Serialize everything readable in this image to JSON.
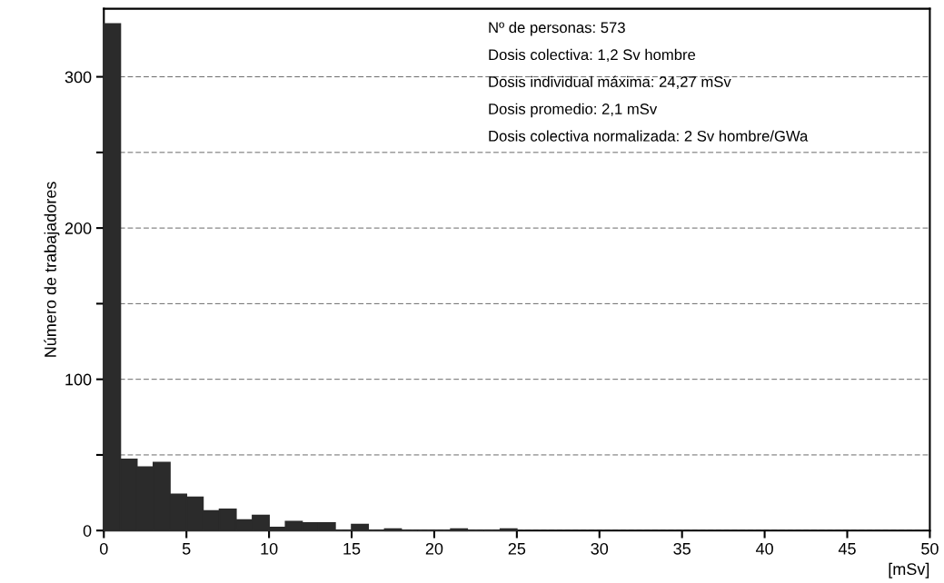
{
  "chart_data": {
    "type": "histogram",
    "xlabel": "[mSv]",
    "ylabel": "Número de trabajadores",
    "bins": [
      0,
      1,
      2,
      3,
      4,
      5,
      6,
      7,
      8,
      9,
      10,
      11,
      12,
      13,
      14,
      15,
      16,
      17,
      18,
      19,
      20,
      21,
      22,
      23,
      24,
      25
    ],
    "values": [
      335,
      47,
      42,
      45,
      24,
      22,
      13,
      14,
      7,
      10,
      2,
      6,
      5,
      5,
      0,
      4,
      0,
      1,
      0,
      0,
      0,
      1,
      0,
      0,
      1
    ],
    "color": "#2b2b2b",
    "xlim": [
      0,
      50
    ],
    "xticks": [
      0,
      5,
      10,
      15,
      20,
      25,
      30,
      35,
      40,
      45,
      50
    ],
    "ylim": [
      0,
      345
    ],
    "yticks": [
      0,
      {
        "value": 50,
        "label": null
      },
      100,
      {
        "value": 150,
        "label": null
      },
      200,
      {
        "value": 250,
        "label": null
      },
      300
    ],
    "grid": "y",
    "annotations": [
      "Nº de personas: 573",
      "Dosis colectiva: 1,2 Sv hombre",
      "Dosis individual máxima: 24,27 mSv",
      "Dosis promedio: 2,1 mSv",
      "Dosis colectiva normalizada: 2 Sv hombre/GWa"
    ]
  }
}
